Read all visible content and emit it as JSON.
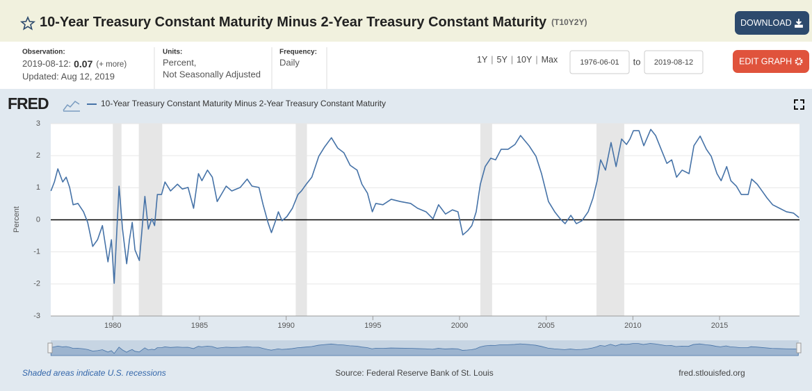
{
  "header": {
    "title": "10-Year Treasury Constant Maturity Minus 2-Year Treasury Constant Maturity",
    "series_id": "(T10Y2Y)",
    "download": "DOWNLOAD"
  },
  "meta": {
    "observation_label": "Observation:",
    "observation_date": "2019-08-12:",
    "observation_value": "0.07",
    "more": "(+ more)",
    "updated": "Updated: Aug 12, 2019",
    "units_label": "Units:",
    "units": [
      "Percent,",
      "Not Seasonally Adjusted"
    ],
    "frequency_label": "Frequency:",
    "frequency": "Daily"
  },
  "controls": {
    "ranges": [
      "1Y",
      "5Y",
      "10Y",
      "Max"
    ],
    "separator": "|",
    "date_from": "1976-06-01",
    "to": "to",
    "date_to": "2019-08-12",
    "edit_graph": "EDIT GRAPH"
  },
  "chart_data": {
    "type": "line",
    "logo": "FRED",
    "ylabel": "Percent",
    "xlim": [
      1976.42,
      2019.61
    ],
    "xticks": [
      1980,
      1985,
      1990,
      1995,
      2000,
      2005,
      2010,
      2015
    ],
    "ylim": [
      -3,
      3
    ],
    "yticks": [
      -3,
      -2,
      -1,
      0,
      1,
      2,
      3
    ],
    "grid": true,
    "zero_line": true,
    "recession_color": "#e6e6e6",
    "recessions": [
      [
        1980.0,
        1980.5
      ],
      [
        1981.5,
        1982.85
      ],
      [
        1990.55,
        1991.2
      ],
      [
        2001.2,
        2001.88
      ],
      [
        2007.9,
        2009.5
      ]
    ],
    "series": [
      {
        "name": "10-Year Treasury Constant Maturity Minus 2-Year Treasury Constant Maturity",
        "color": "#4572a7",
        "x": [
          1976.43,
          1976.63,
          1976.83,
          1977.11,
          1977.31,
          1977.51,
          1977.71,
          1977.99,
          1978.31,
          1978.55,
          1978.84,
          1979.12,
          1979.4,
          1979.72,
          1979.92,
          1980.08,
          1980.36,
          1980.56,
          1980.8,
          1980.96,
          1981.12,
          1981.28,
          1981.53,
          1981.85,
          1982.05,
          1982.25,
          1982.41,
          1982.57,
          1982.81,
          1983.01,
          1983.33,
          1983.73,
          1984.01,
          1984.34,
          1984.66,
          1984.94,
          1985.14,
          1985.46,
          1985.74,
          1986.02,
          1986.26,
          1986.54,
          1986.86,
          1987.35,
          1987.75,
          1988.03,
          1988.43,
          1988.67,
          1988.95,
          1989.15,
          1989.39,
          1989.55,
          1989.76,
          1990.04,
          1990.36,
          1990.68,
          1990.88,
          1991.16,
          1991.48,
          1991.88,
          1992.2,
          1992.61,
          1992.97,
          1993.33,
          1993.69,
          1994.09,
          1994.37,
          1994.69,
          1994.97,
          1995.17,
          1995.58,
          1996.06,
          1996.58,
          1997.18,
          1997.58,
          1998.07,
          1998.47,
          1998.79,
          1999.19,
          1999.59,
          1999.91,
          2000.19,
          2000.47,
          2000.71,
          2000.96,
          2001.2,
          2001.48,
          2001.8,
          2002.08,
          2002.4,
          2002.8,
          2003.2,
          2003.52,
          2004.01,
          2004.41,
          2004.73,
          2005.13,
          2005.49,
          2005.81,
          2006.09,
          2006.42,
          2006.74,
          2007.06,
          2007.42,
          2007.7,
          2007.94,
          2008.14,
          2008.42,
          2008.74,
          2009.03,
          2009.35,
          2009.63,
          2009.83,
          2010.03,
          2010.35,
          2010.63,
          2011.03,
          2011.31,
          2011.63,
          2011.96,
          2012.24,
          2012.52,
          2012.84,
          2013.24,
          2013.52,
          2013.88,
          2014.24,
          2014.52,
          2014.85,
          2015.09,
          2015.41,
          2015.65,
          2015.97,
          2016.25,
          2016.65,
          2016.85,
          2017.17,
          2017.45,
          2017.74,
          2018.06,
          2018.46,
          2018.86,
          2019.26,
          2019.58
        ],
        "values": [
          0.9,
          1.18,
          1.59,
          1.18,
          1.33,
          1.01,
          0.47,
          0.51,
          0.25,
          -0.08,
          -0.83,
          -0.62,
          -0.18,
          -1.31,
          -0.62,
          -1.98,
          1.05,
          -0.29,
          -1.37,
          -0.62,
          -0.08,
          -0.94,
          -1.27,
          0.73,
          -0.29,
          0.03,
          -0.18,
          0.79,
          0.79,
          1.18,
          0.9,
          1.11,
          0.96,
          1.01,
          0.36,
          1.44,
          1.22,
          1.55,
          1.33,
          0.57,
          0.79,
          1.05,
          0.9,
          1.01,
          1.27,
          1.05,
          1.01,
          0.47,
          -0.08,
          -0.4,
          -0.03,
          0.25,
          -0.03,
          0.1,
          0.36,
          0.79,
          0.9,
          1.11,
          1.33,
          1.98,
          2.26,
          2.56,
          2.24,
          2.09,
          1.7,
          1.55,
          1.11,
          0.83,
          0.25,
          0.51,
          0.47,
          0.64,
          0.57,
          0.51,
          0.36,
          0.25,
          0.03,
          0.47,
          0.18,
          0.31,
          0.25,
          -0.47,
          -0.34,
          -0.18,
          0.25,
          1.11,
          1.66,
          1.92,
          1.87,
          2.2,
          2.2,
          2.35,
          2.63,
          2.31,
          1.98,
          1.44,
          0.57,
          0.25,
          0.03,
          -0.12,
          0.14,
          -0.12,
          -0.03,
          0.25,
          0.68,
          1.22,
          1.87,
          1.55,
          2.41,
          1.66,
          2.52,
          2.35,
          2.52,
          2.78,
          2.78,
          2.31,
          2.82,
          2.63,
          2.2,
          1.76,
          1.87,
          1.33,
          1.55,
          1.44,
          2.31,
          2.61,
          2.2,
          1.98,
          1.44,
          1.22,
          1.66,
          1.22,
          1.05,
          0.79,
          0.79,
          1.27,
          1.11,
          0.9,
          0.68,
          0.47,
          0.36,
          0.25,
          0.21,
          0.07
        ]
      }
    ]
  },
  "footer": {
    "note": "Shaded areas indicate U.S. recessions",
    "source": "Source: Federal Reserve Bank of St. Louis",
    "site": "fred.stlouisfed.org"
  }
}
